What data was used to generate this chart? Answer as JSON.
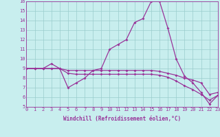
{
  "background_color": "#c8eeee",
  "grid_color": "#99cccc",
  "line_color": "#993399",
  "xlabel": "Windchill (Refroidissement éolien,°C)",
  "xlim": [
    0,
    23
  ],
  "ylim": [
    5,
    16
  ],
  "yticks": [
    5,
    6,
    7,
    8,
    9,
    10,
    11,
    12,
    13,
    14,
    15,
    16
  ],
  "xticks": [
    0,
    1,
    2,
    3,
    4,
    5,
    6,
    7,
    8,
    9,
    10,
    11,
    12,
    13,
    14,
    15,
    16,
    17,
    18,
    19,
    20,
    21,
    22,
    23
  ],
  "line1_y": [
    9.0,
    9.0,
    9.0,
    9.5,
    9.0,
    7.0,
    7.5,
    8.0,
    8.8,
    9.0,
    11.0,
    11.5,
    12.0,
    13.8,
    14.2,
    16.0,
    16.0,
    13.2,
    10.0,
    8.2,
    7.5,
    6.5,
    5.3,
    6.2
  ],
  "line2_y": [
    9.0,
    9.0,
    9.0,
    9.0,
    9.0,
    8.8,
    8.8,
    8.8,
    8.8,
    8.8,
    8.8,
    8.8,
    8.8,
    8.8,
    8.8,
    8.8,
    8.7,
    8.5,
    8.3,
    8.0,
    7.8,
    7.5,
    6.3,
    6.5
  ],
  "line3_y": [
    9.0,
    9.0,
    9.0,
    9.0,
    9.0,
    8.5,
    8.4,
    8.4,
    8.4,
    8.4,
    8.4,
    8.4,
    8.4,
    8.4,
    8.4,
    8.4,
    8.3,
    8.1,
    7.7,
    7.2,
    6.8,
    6.3,
    5.7,
    6.2
  ]
}
